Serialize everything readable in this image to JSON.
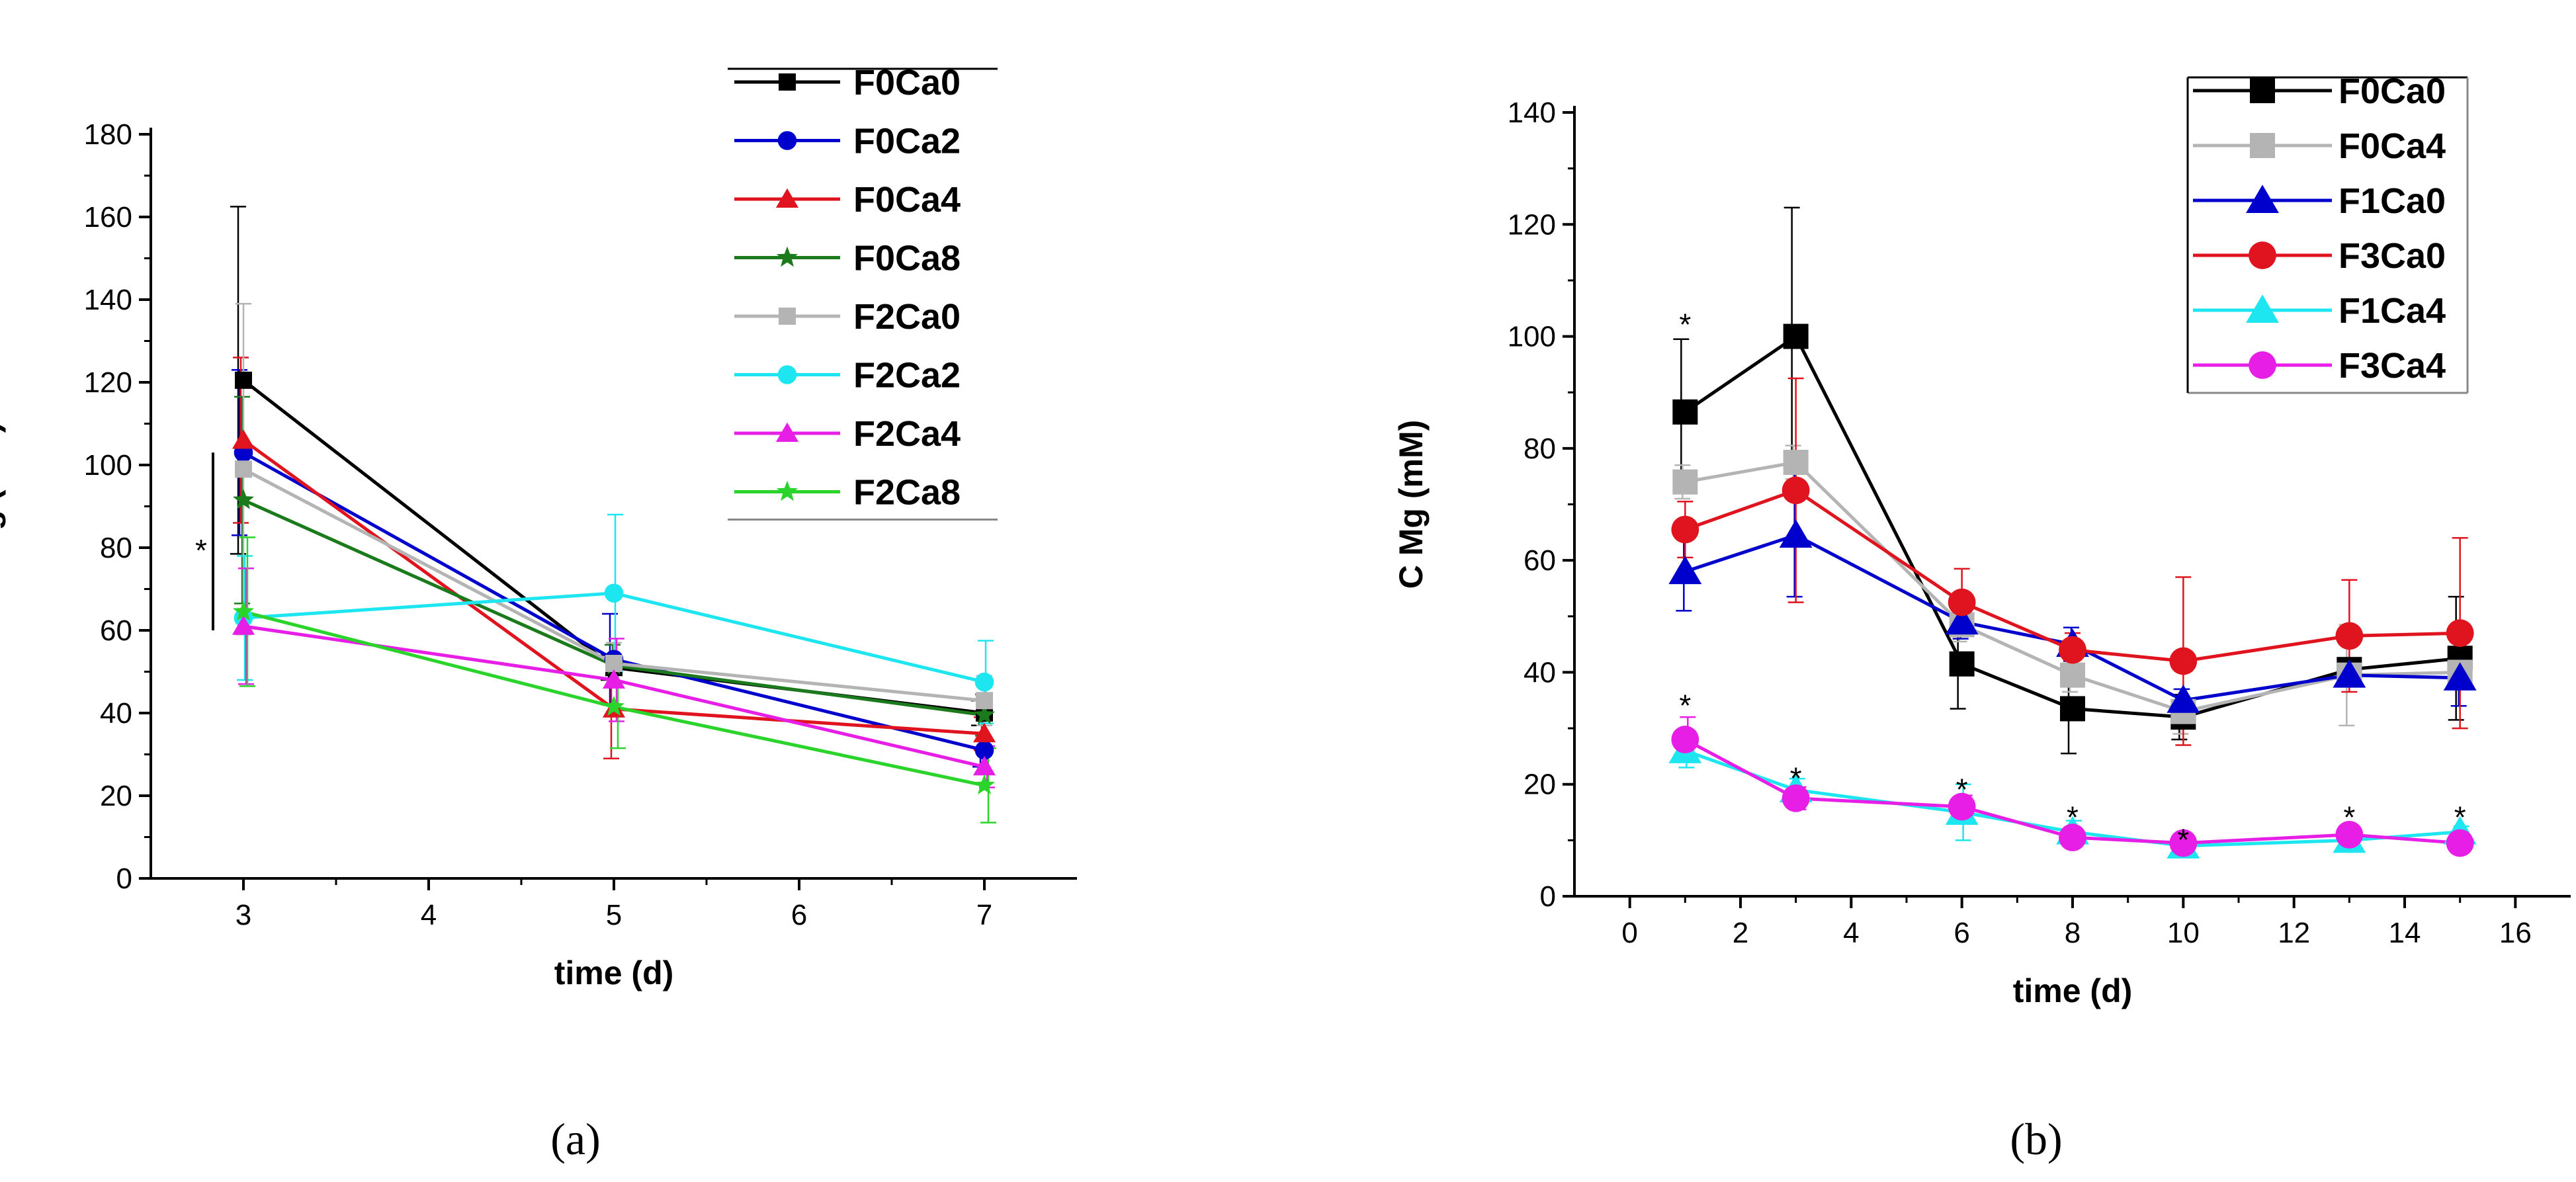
{
  "chart_data": [
    {
      "panel": "a",
      "type": "line",
      "caption": "(a)",
      "xlabel": "time (d)",
      "ylabel": "C Mg (mM)",
      "xlim": [
        2.5,
        7.5
      ],
      "ylim": [
        0,
        180
      ],
      "xticks": [
        3,
        4,
        5,
        6,
        7
      ],
      "yticks": [
        0,
        20,
        40,
        60,
        80,
        100,
        120,
        140,
        160,
        180
      ],
      "legend_position": "top-right",
      "x": [
        3,
        5,
        7
      ],
      "series": [
        {
          "name": "F0Ca0",
          "color": "#000000",
          "marker": "square",
          "values": [
            120.5,
            51,
            40
          ],
          "err": [
            42,
            3,
            3
          ]
        },
        {
          "name": "F0Ca2",
          "color": "#0000cc",
          "marker": "circle",
          "values": [
            103,
            53,
            31
          ],
          "err": [
            20,
            11,
            4
          ]
        },
        {
          "name": "F0Ca4",
          "color": "#e0141e",
          "marker": "triangle",
          "values": [
            106,
            41,
            35
          ],
          "err": [
            20,
            12,
            4
          ]
        },
        {
          "name": "F0Ca8",
          "color": "#1b7a1b",
          "marker": "star",
          "values": [
            91.5,
            51.5,
            39.5
          ],
          "err": [
            25,
            5,
            5
          ]
        },
        {
          "name": "F2Ca0",
          "color": "#b4b4b4",
          "marker": "square",
          "values": [
            99,
            52,
            43
          ],
          "err": [
            40,
            5,
            6
          ]
        },
        {
          "name": "F2Ca2",
          "color": "#1ee6f0",
          "marker": "circle",
          "values": [
            63,
            69,
            47.5
          ],
          "err": [
            15,
            19,
            10
          ]
        },
        {
          "name": "F2Ca4",
          "color": "#e61ee6",
          "marker": "triangle",
          "values": [
            61,
            48,
            27
          ],
          "err": [
            14,
            10,
            5
          ]
        },
        {
          "name": "F2Ca8",
          "color": "#2ad42a",
          "marker": "star",
          "values": [
            64.5,
            41.5,
            22.5
          ],
          "err": [
            18,
            10,
            9
          ]
        }
      ],
      "annotations": [
        {
          "text": "*",
          "note": "bracket spanning day 3 values from about 60 to 103"
        }
      ]
    },
    {
      "panel": "b",
      "type": "line",
      "caption": "(b)",
      "xlabel": "time (d)",
      "ylabel": "C Mg (mM)",
      "xlim": [
        -1,
        17
      ],
      "ylim": [
        0,
        140
      ],
      "xticks": [
        0,
        2,
        4,
        6,
        8,
        10,
        12,
        14,
        16
      ],
      "yticks": [
        0,
        20,
        40,
        60,
        80,
        100,
        120,
        140
      ],
      "legend_position": "top-right",
      "x": [
        1,
        3,
        6,
        8,
        10,
        13,
        15
      ],
      "series": [
        {
          "name": "F0Ca0",
          "color": "#000000",
          "marker": "square",
          "values": [
            86.5,
            100,
            41.5,
            33.5,
            32,
            40.5,
            42.5
          ],
          "err": [
            13,
            23,
            8,
            8,
            4,
            2,
            11
          ]
        },
        {
          "name": "F0Ca4",
          "color": "#b4b4b4",
          "marker": "square",
          "values": [
            74,
            77.5,
            48.5,
            39.5,
            33,
            39.5,
            40
          ],
          "err": [
            3,
            3,
            3,
            3,
            4,
            9,
            3
          ]
        },
        {
          "name": "F1Ca0",
          "color": "#0000cc",
          "marker": "triangle",
          "values": [
            58,
            64.5,
            49,
            45,
            35,
            39.5,
            39
          ],
          "err": [
            7,
            11,
            3,
            3,
            2,
            2,
            5
          ]
        },
        {
          "name": "F3Ca0",
          "color": "#e0141e",
          "marker": "circle",
          "values": [
            65.5,
            72.5,
            52.5,
            44,
            42,
            46.5,
            47
          ],
          "err": [
            5,
            20,
            6,
            3,
            15,
            10,
            17
          ]
        },
        {
          "name": "F1Ca4",
          "color": "#1ee6f0",
          "marker": "triangle",
          "values": [
            26,
            19,
            15,
            11.5,
            9,
            10,
            11.5
          ],
          "err": [
            3,
            2,
            5,
            2,
            1,
            1,
            1
          ]
        },
        {
          "name": "F3Ca4",
          "color": "#e61ee6",
          "marker": "circle",
          "values": [
            28,
            17.5,
            16,
            10.5,
            9.5,
            11,
            9.5
          ],
          "err": [
            4,
            2,
            2,
            1,
            1,
            1,
            1
          ]
        }
      ],
      "annotations": [
        {
          "text": "*",
          "x": 1,
          "y": 104
        },
        {
          "text": "*",
          "x": 1,
          "y": 36
        },
        {
          "text": "*",
          "x": 3,
          "y": 23
        },
        {
          "text": "*",
          "x": 6,
          "y": 21
        },
        {
          "text": "*",
          "x": 8,
          "y": 16
        },
        {
          "text": "*",
          "x": 10,
          "y": 12
        },
        {
          "text": "*",
          "x": 13,
          "y": 16
        },
        {
          "text": "*",
          "x": 15,
          "y": 16
        }
      ]
    }
  ]
}
